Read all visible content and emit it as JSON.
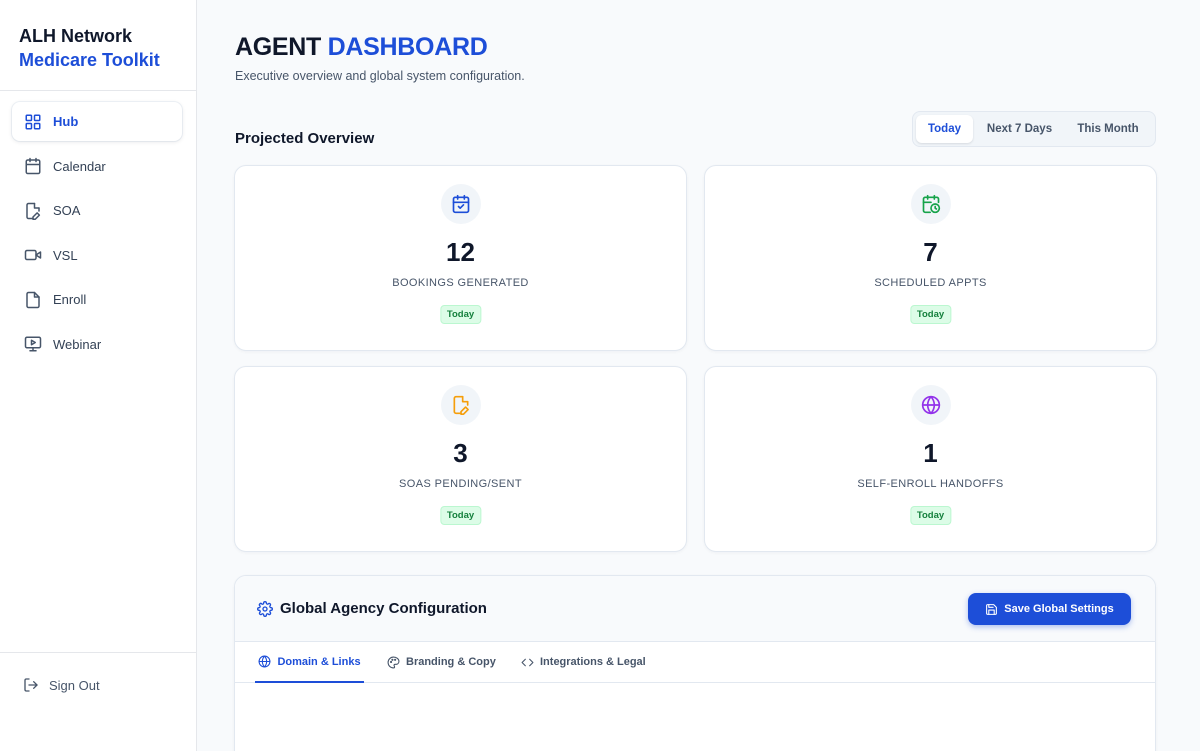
{
  "brand": {
    "line1": "ALH Network",
    "line2": "Medicare Toolkit"
  },
  "sidebar": {
    "items": [
      {
        "label": "Hub",
        "icon": "grid-icon",
        "active": true
      },
      {
        "label": "Calendar",
        "icon": "calendar-icon",
        "active": false
      },
      {
        "label": "SOA",
        "icon": "file-edit-icon",
        "active": false
      },
      {
        "label": "VSL",
        "icon": "video-icon",
        "active": false
      },
      {
        "label": "Enroll",
        "icon": "document-icon",
        "active": false
      },
      {
        "label": "Webinar",
        "icon": "presentation-icon",
        "active": false
      }
    ],
    "signout_label": "Sign Out"
  },
  "header": {
    "title_plain": "AGENT ",
    "title_accent": "DASHBOARD",
    "subtitle": "Executive overview and global system configuration."
  },
  "overview": {
    "title": "Projected Overview",
    "ranges": [
      "Today",
      "Next 7 Days",
      "This Month"
    ],
    "selected_range": "Today",
    "cards": [
      {
        "value": "12",
        "label": "BOOKINGS GENERATED",
        "badge": "Today",
        "icon": "calendar-check-icon",
        "icon_color": "#1d4ed8"
      },
      {
        "value": "7",
        "label": "SCHEDULED APPTS",
        "badge": "Today",
        "icon": "calendar-clock-icon",
        "icon_color": "#16a34a"
      },
      {
        "value": "3",
        "label": "SOAS PENDING/SENT",
        "badge": "Today",
        "icon": "file-edit-icon",
        "icon_color": "#f59e0b"
      },
      {
        "value": "1",
        "label": "SELF-ENROLL HANDOFFS",
        "badge": "Today",
        "icon": "globe-icon",
        "icon_color": "#9333ea"
      }
    ]
  },
  "config": {
    "title": "Global Agency Configuration",
    "save_label": "Save Global Settings",
    "tabs": [
      {
        "label": "Domain & Links",
        "icon": "globe-icon",
        "active": true
      },
      {
        "label": "Branding & Copy",
        "icon": "palette-icon",
        "active": false
      },
      {
        "label": "Integrations & Legal",
        "icon": "code-icon",
        "active": false
      }
    ]
  },
  "colors": {
    "accent": "#1d4ed8",
    "badge_green": "#15803d"
  }
}
